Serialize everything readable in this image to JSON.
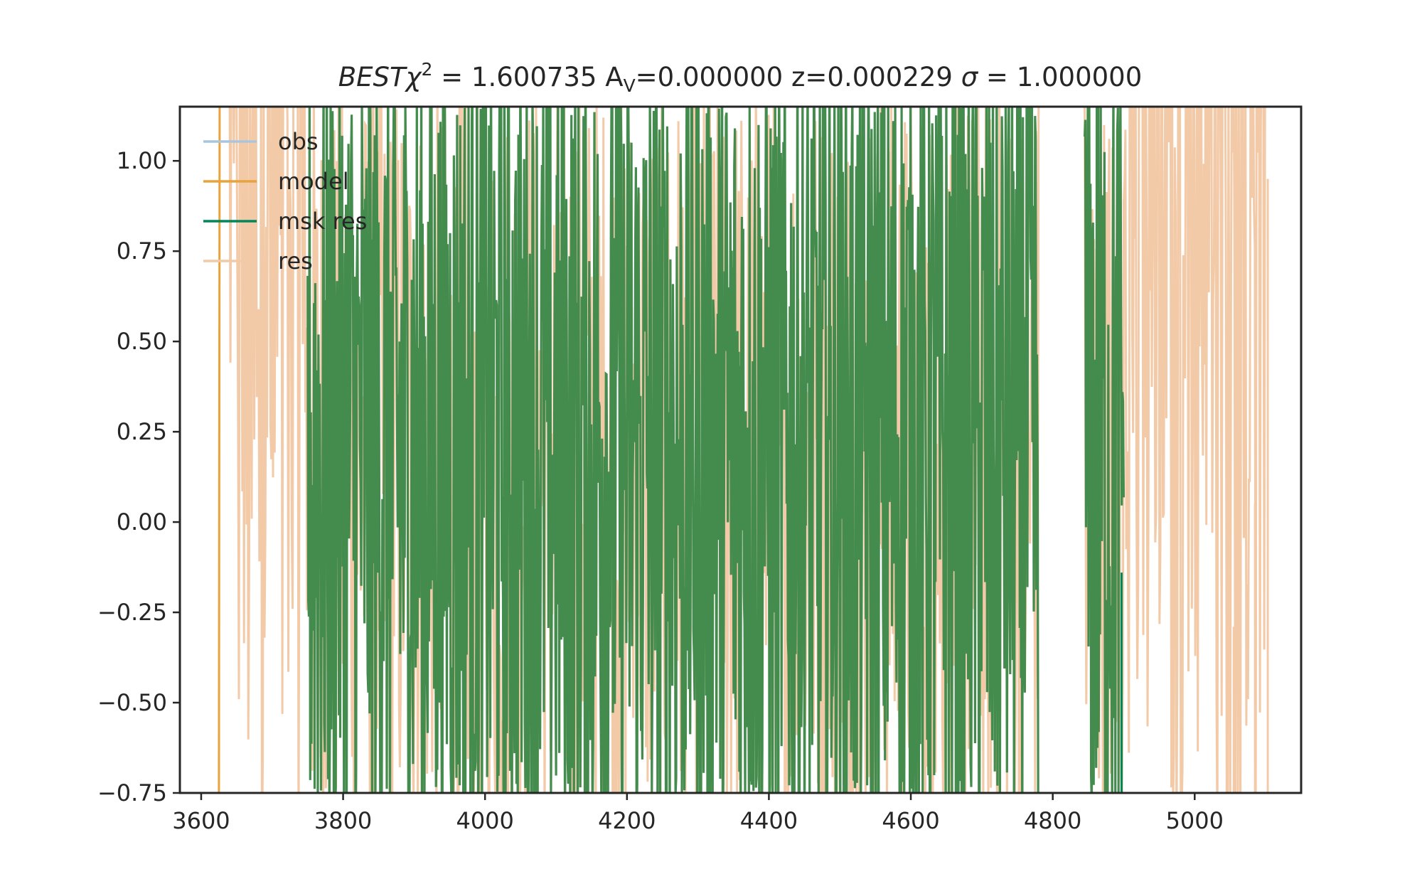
{
  "chart_data": {
    "type": "line",
    "title": {
      "prefix": "BEST",
      "chi": "χ",
      "sup": "2",
      "chi_value": " = 1.600735 A",
      "av_sub": "V",
      "rest": "=0.000000 z=0.000229 ",
      "sigma": "σ",
      "sigma_value": " = 1.000000"
    },
    "xlabel": "",
    "ylabel": "",
    "xlim": [
      3570,
      5150
    ],
    "ylim": [
      -0.75,
      1.15
    ],
    "x_ticks": [
      3600,
      3800,
      4000,
      4200,
      4400,
      4600,
      4800,
      5000
    ],
    "x_tick_labels": [
      "3600",
      "3800",
      "4000",
      "4200",
      "4400",
      "4600",
      "4800",
      "5000"
    ],
    "y_ticks": [
      1.0,
      0.75,
      0.5,
      0.25,
      0.0,
      -0.25,
      -0.5,
      -0.75
    ],
    "y_tick_labels": [
      "1.00",
      "0.75",
      "0.50",
      "0.25",
      "0.00",
      "−0.25",
      "−0.50",
      "−0.75"
    ],
    "grid": false,
    "legend_position": "top-left",
    "series": [
      {
        "name": "obs",
        "color": "#a9c6de",
        "x_range": [
          3625,
          5105
        ],
        "note_values": "mostly above the visible y range"
      },
      {
        "name": "model",
        "color": "#e8a33d",
        "segments": [
          [
            3625,
            -0.75
          ],
          [
            3626,
            1.15
          ]
        ]
      },
      {
        "name": "msk res",
        "color": "#00875a",
        "x_ranges": [
          [
            3750,
            4780
          ],
          [
            4845,
            4900
          ]
        ]
      },
      {
        "name": "res",
        "color": "#f2caa8",
        "x_ranges": [
          [
            3640,
            5105
          ]
        ]
      }
    ],
    "fill_color": "#448b4e",
    "annotations": [
      {
        "x": 5103,
        "y": 0.95,
        "series": "res"
      },
      {
        "x": 5085,
        "y": 0.05,
        "series": "res"
      },
      {
        "x": 5055,
        "y": -0.29,
        "series": "res"
      },
      {
        "x": 4897,
        "y": -0.14,
        "series": "msk res"
      }
    ]
  }
}
